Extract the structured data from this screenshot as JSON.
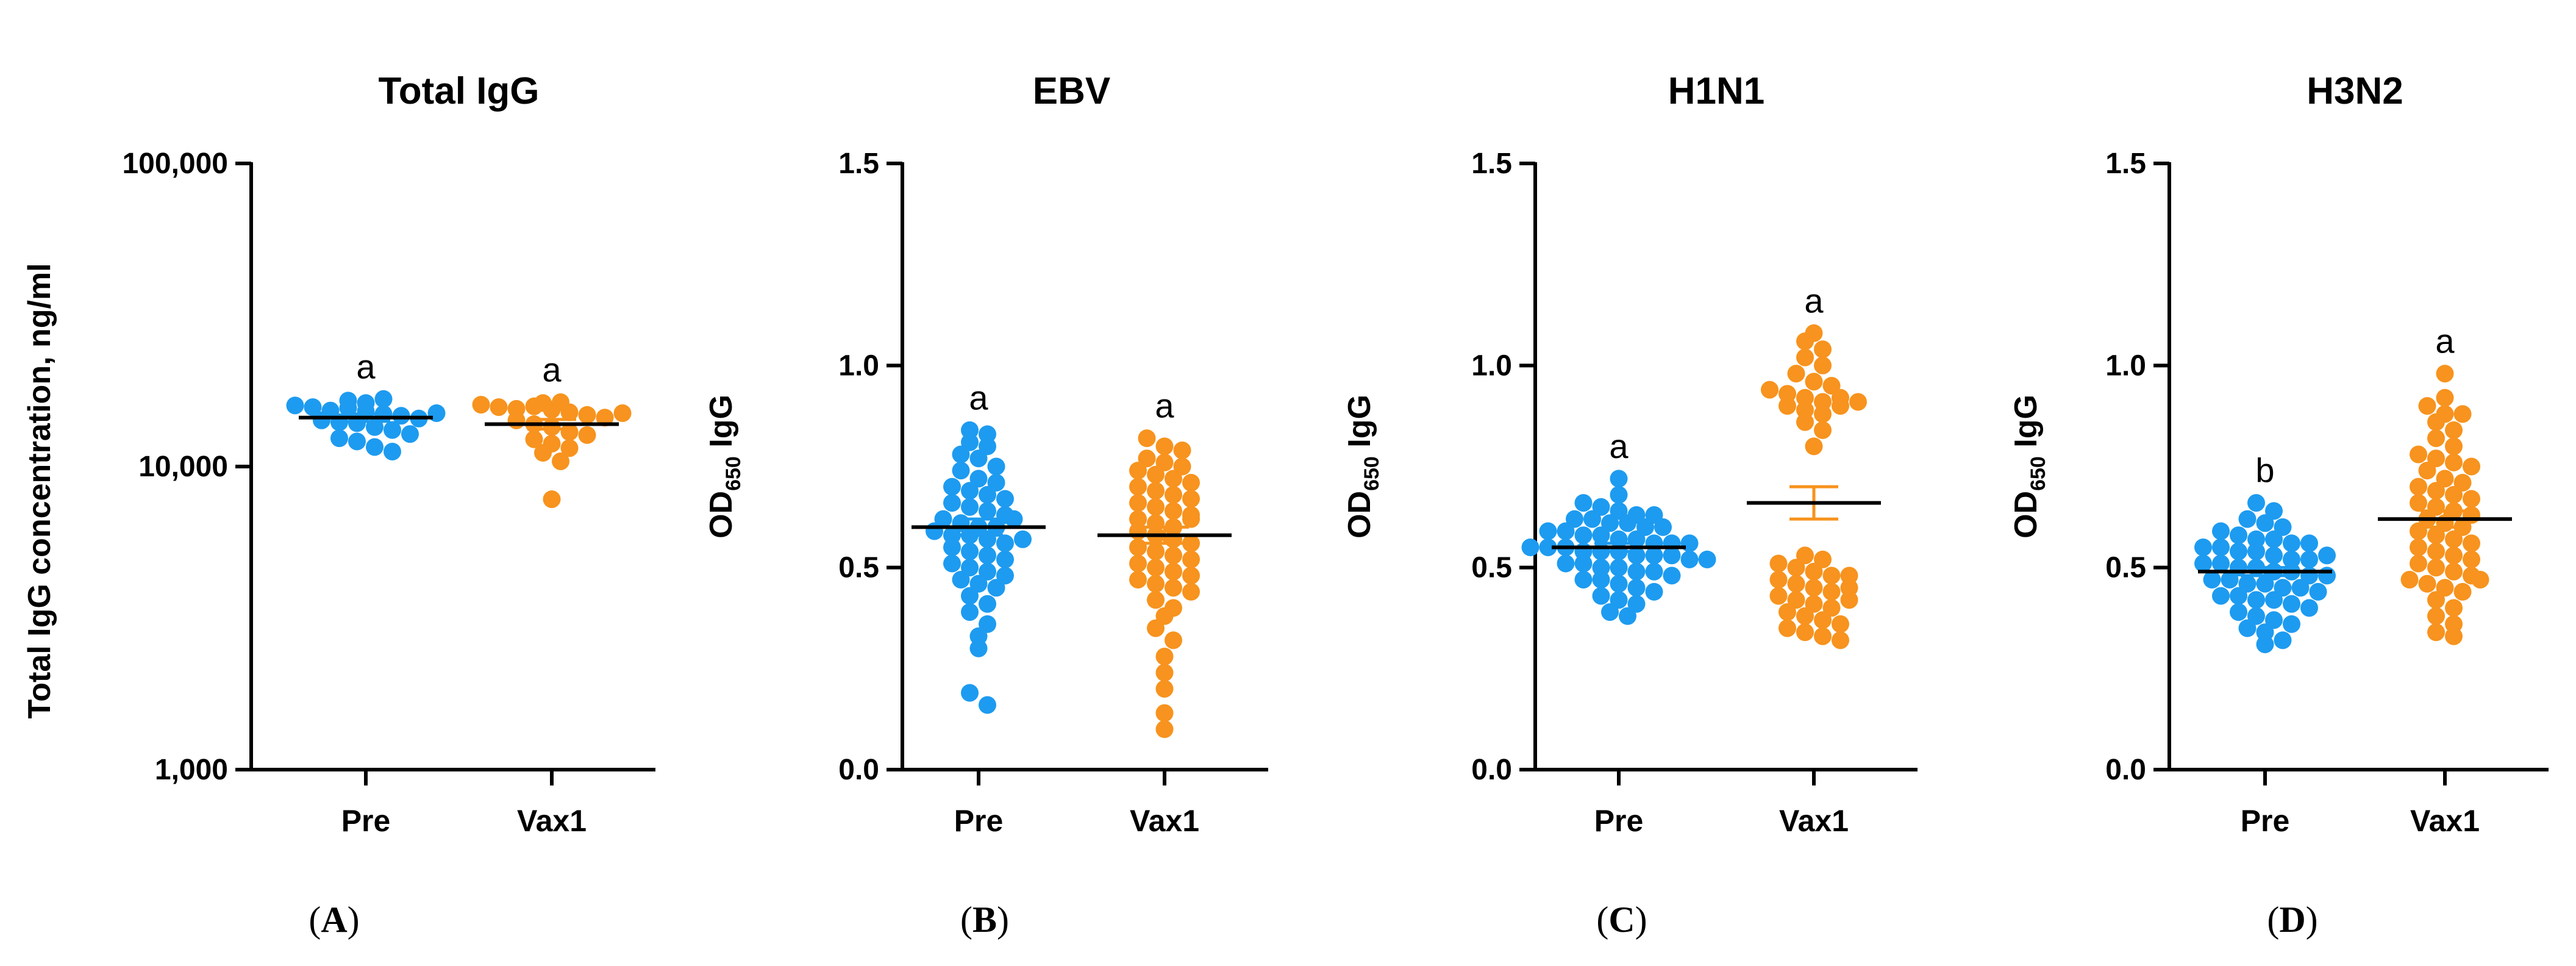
{
  "chart_data": [
    {
      "panel": "A",
      "type": "scatter",
      "title": "Total IgG",
      "ylabel_main": "Total IgG concentration, ng/ml",
      "ylabel_sub": "",
      "ylabel_tail": "",
      "yscale": "log",
      "ylim": [
        1000,
        100000
      ],
      "yticks": [
        1000,
        10000,
        100000
      ],
      "ytick_labels": [
        "1,000",
        "10,000",
        "100,000"
      ],
      "categories": [
        "Pre",
        "Vax1"
      ],
      "series": [
        {
          "name": "Pre",
          "color": "#1d9bf0",
          "mean": 14500,
          "sem": 400,
          "significance": "a",
          "values": [
            16500,
            16200,
            15900,
            16700,
            15700,
            15300,
            15600,
            15200,
            14900,
            14700,
            14400,
            14200,
            14000,
            13900,
            13500,
            13200,
            12800,
            12400,
            12100,
            11600,
            11200,
            15000
          ]
        },
        {
          "name": "Vax1",
          "color": "#f7931e",
          "mean": 13800,
          "sem": 500,
          "significance": "a",
          "values": [
            16200,
            16000,
            15700,
            15500,
            15800,
            15400,
            15100,
            14800,
            14500,
            14200,
            13800,
            13500,
            13000,
            12700,
            12300,
            11900,
            11500,
            11100,
            10400,
            7800,
            16300,
            15000
          ]
        }
      ]
    },
    {
      "panel": "B",
      "type": "scatter",
      "title": "EBV",
      "ylabel_main": "OD",
      "ylabel_sub": "650",
      "ylabel_tail": " IgG",
      "yscale": "linear",
      "ylim": [
        0,
        1.5
      ],
      "yticks": [
        0,
        0.5,
        1.0,
        1.5
      ],
      "ytick_labels": [
        "0.0",
        "0.5",
        "1.0",
        "1.5"
      ],
      "categories": [
        "Pre",
        "Vax1"
      ],
      "series": [
        {
          "name": "Pre",
          "color": "#1d9bf0",
          "mean": 0.6,
          "sem": 0.02,
          "significance": "a",
          "values": [
            0.84,
            0.83,
            0.81,
            0.8,
            0.78,
            0.77,
            0.75,
            0.74,
            0.72,
            0.71,
            0.7,
            0.69,
            0.68,
            0.67,
            0.66,
            0.65,
            0.64,
            0.63,
            0.62,
            0.61,
            0.6,
            0.6,
            0.59,
            0.58,
            0.58,
            0.57,
            0.56,
            0.55,
            0.54,
            0.53,
            0.52,
            0.51,
            0.5,
            0.49,
            0.48,
            0.47,
            0.46,
            0.45,
            0.43,
            0.41,
            0.39,
            0.36,
            0.33,
            0.3,
            0.19,
            0.16,
            0.62,
            0.57
          ]
        },
        {
          "name": "Vax1",
          "color": "#f7931e",
          "mean": 0.58,
          "sem": 0.02,
          "significance": "a",
          "values": [
            0.82,
            0.8,
            0.79,
            0.77,
            0.76,
            0.75,
            0.74,
            0.73,
            0.72,
            0.71,
            0.7,
            0.69,
            0.68,
            0.67,
            0.66,
            0.65,
            0.64,
            0.63,
            0.62,
            0.61,
            0.6,
            0.59,
            0.58,
            0.57,
            0.56,
            0.55,
            0.54,
            0.53,
            0.52,
            0.51,
            0.5,
            0.49,
            0.48,
            0.47,
            0.46,
            0.45,
            0.44,
            0.42,
            0.4,
            0.38,
            0.35,
            0.32,
            0.28,
            0.24,
            0.2,
            0.14,
            0.1,
            0.62
          ]
        }
      ]
    },
    {
      "panel": "C",
      "type": "scatter",
      "title": "H1N1",
      "ylabel_main": "OD",
      "ylabel_sub": "650",
      "ylabel_tail": " IgG",
      "yscale": "linear",
      "ylim": [
        0,
        1.5
      ],
      "yticks": [
        0,
        0.5,
        1.0,
        1.5
      ],
      "ytick_labels": [
        "0.0",
        "0.5",
        "1.0",
        "1.5"
      ],
      "categories": [
        "Pre",
        "Vax1"
      ],
      "series": [
        {
          "name": "Pre",
          "color": "#1d9bf0",
          "mean": 0.55,
          "sem": 0.01,
          "significance": "a",
          "values": [
            0.72,
            0.68,
            0.66,
            0.65,
            0.64,
            0.63,
            0.63,
            0.62,
            0.62,
            0.61,
            0.61,
            0.6,
            0.6,
            0.59,
            0.59,
            0.58,
            0.58,
            0.57,
            0.57,
            0.56,
            0.56,
            0.56,
            0.55,
            0.55,
            0.55,
            0.54,
            0.54,
            0.54,
            0.53,
            0.53,
            0.53,
            0.52,
            0.52,
            0.51,
            0.51,
            0.5,
            0.5,
            0.49,
            0.49,
            0.48,
            0.47,
            0.47,
            0.46,
            0.45,
            0.44,
            0.43,
            0.42,
            0.41,
            0.39,
            0.38
          ]
        },
        {
          "name": "Vax1",
          "color": "#f7931e",
          "mean": 0.66,
          "sem": 0.04,
          "significance": "a",
          "values": [
            1.08,
            1.06,
            1.04,
            1.02,
            1.0,
            0.98,
            0.96,
            0.95,
            0.94,
            0.93,
            0.92,
            0.91,
            0.9,
            0.89,
            0.88,
            0.86,
            0.84,
            0.8,
            0.53,
            0.52,
            0.51,
            0.5,
            0.49,
            0.48,
            0.47,
            0.46,
            0.45,
            0.44,
            0.43,
            0.42,
            0.41,
            0.4,
            0.39,
            0.38,
            0.37,
            0.36,
            0.35,
            0.34,
            0.33,
            0.32,
            0.92,
            0.9,
            0.91,
            0.48,
            0.45,
            0.42
          ]
        }
      ]
    },
    {
      "panel": "D",
      "type": "scatter",
      "title": "H3N2",
      "ylabel_main": "OD",
      "ylabel_sub": "650",
      "ylabel_tail": " IgG",
      "yscale": "linear",
      "ylim": [
        0,
        1.5
      ],
      "yticks": [
        0,
        0.5,
        1.0,
        1.5
      ],
      "ytick_labels": [
        "0.0",
        "0.5",
        "1.0",
        "1.5"
      ],
      "categories": [
        "Pre",
        "Vax1"
      ],
      "series": [
        {
          "name": "Pre",
          "color": "#1d9bf0",
          "mean": 0.49,
          "sem": 0.01,
          "significance": "b",
          "values": [
            0.66,
            0.64,
            0.62,
            0.61,
            0.6,
            0.59,
            0.58,
            0.57,
            0.57,
            0.56,
            0.55,
            0.55,
            0.54,
            0.54,
            0.53,
            0.52,
            0.52,
            0.51,
            0.51,
            0.5,
            0.5,
            0.49,
            0.49,
            0.48,
            0.48,
            0.47,
            0.47,
            0.46,
            0.46,
            0.45,
            0.45,
            0.44,
            0.43,
            0.43,
            0.42,
            0.42,
            0.41,
            0.4,
            0.39,
            0.38,
            0.37,
            0.36,
            0.35,
            0.34,
            0.32,
            0.31,
            0.56,
            0.53
          ]
        },
        {
          "name": "Vax1",
          "color": "#f7931e",
          "mean": 0.62,
          "sem": 0.02,
          "significance": "a",
          "values": [
            0.98,
            0.92,
            0.9,
            0.88,
            0.86,
            0.84,
            0.82,
            0.8,
            0.78,
            0.77,
            0.76,
            0.75,
            0.74,
            0.72,
            0.71,
            0.7,
            0.69,
            0.68,
            0.67,
            0.66,
            0.65,
            0.64,
            0.63,
            0.62,
            0.61,
            0.6,
            0.59,
            0.58,
            0.57,
            0.56,
            0.55,
            0.54,
            0.53,
            0.52,
            0.51,
            0.5,
            0.49,
            0.48,
            0.47,
            0.46,
            0.45,
            0.44,
            0.42,
            0.4,
            0.38,
            0.36,
            0.34,
            0.33,
            0.88,
            0.47
          ]
        }
      ]
    }
  ]
}
